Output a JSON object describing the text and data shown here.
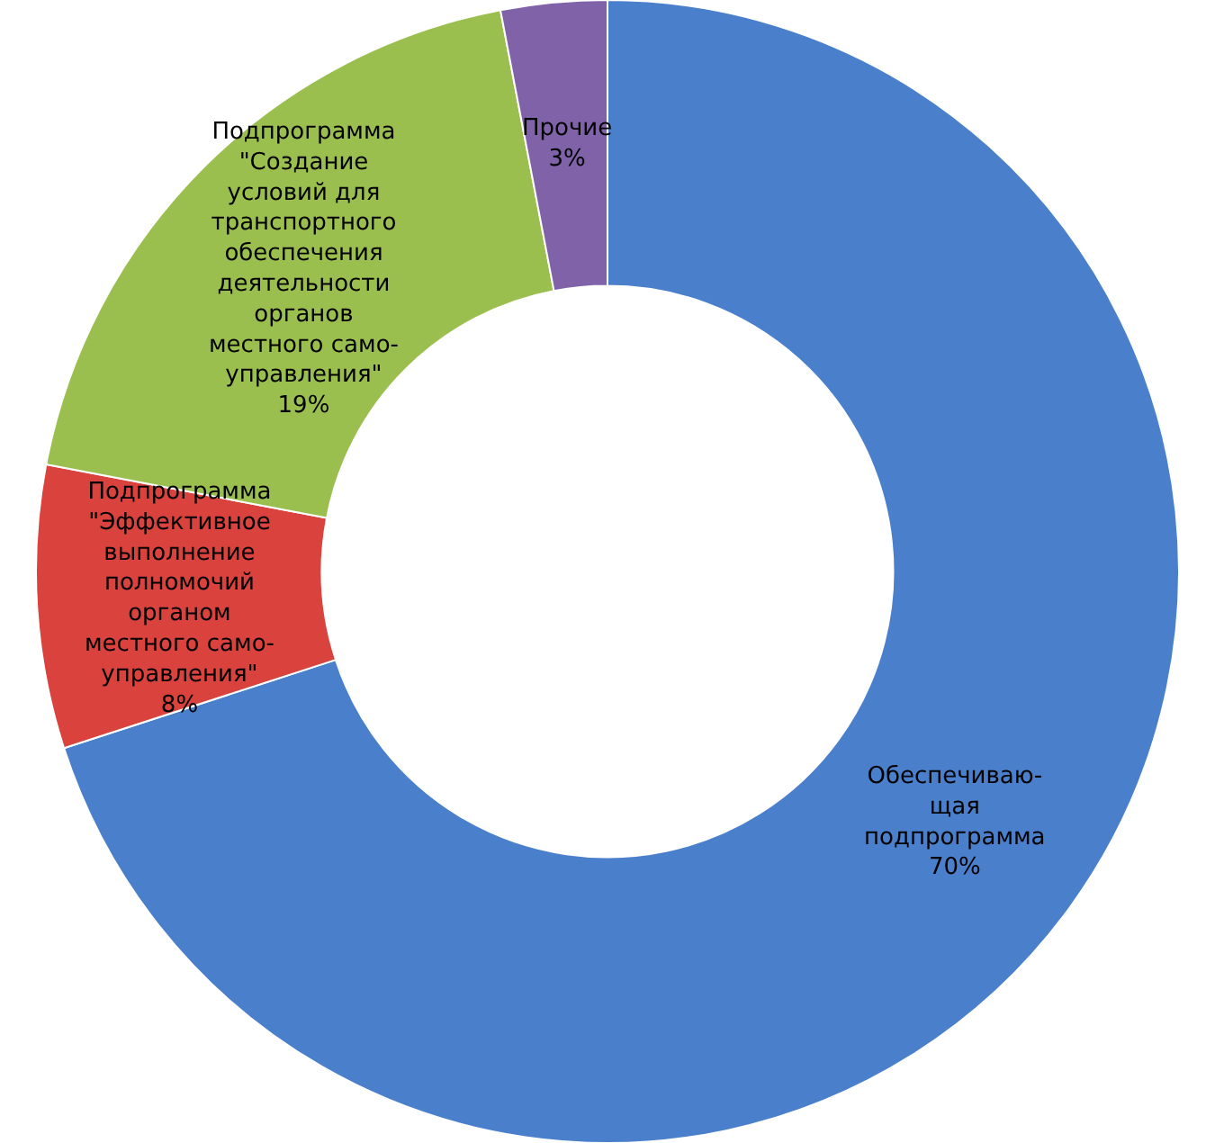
{
  "chart_data": {
    "type": "donut",
    "categories": [
      "Обеспечиваю-\nщая\nподпрограмма",
      "Подпрограмма\n\"Эффективное\nвыполнение\nполномочий\nорганом\nместного само-\nуправления\"",
      "Подпрограмма\n\"Создание\nусловий для\nтранспортного\nобеспечения\nдеятельности\nорганов\nместного само-\nуправления\"",
      "Прочие"
    ],
    "values": [
      70,
      8,
      19,
      3
    ],
    "value_labels": [
      "70%",
      "8%",
      "19%",
      "3%"
    ],
    "colors": [
      "#4a7fcc",
      "#d9423d",
      "#9bbf4f",
      "#8062a8"
    ],
    "legend": false
  }
}
